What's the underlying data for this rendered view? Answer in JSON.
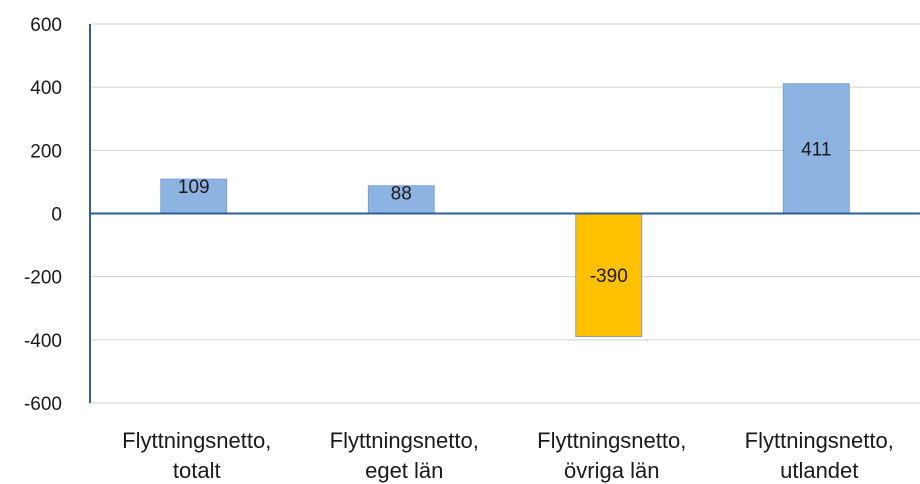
{
  "chart_data": {
    "type": "bar",
    "categories": [
      [
        "Flyttningsnetto,",
        "totalt"
      ],
      [
        "Flyttningsnetto,",
        "eget län"
      ],
      [
        "Flyttningsnetto,",
        "övriga län"
      ],
      [
        "Flyttningsnetto,",
        "utlandet"
      ]
    ],
    "values": [
      109,
      88,
      -390,
      411
    ],
    "data_labels": [
      "109",
      "88",
      "-390",
      "411"
    ],
    "bar_colors": [
      "#8db3e2",
      "#8db3e2",
      "#ffc000",
      "#8db3e2"
    ],
    "bar_border_color": "#6e98c9",
    "ylim": [
      -600,
      600
    ],
    "yticks": [
      600,
      400,
      200,
      0,
      -200,
      -400,
      -600
    ],
    "ytick_labels": [
      "600",
      "400",
      "200",
      "0",
      "-200",
      "-400",
      "-600"
    ],
    "grid": true,
    "gridline_color": "#d0d0d0",
    "axis_color": "#2e5f9a",
    "title": "",
    "xlabel": "",
    "ylabel": ""
  }
}
